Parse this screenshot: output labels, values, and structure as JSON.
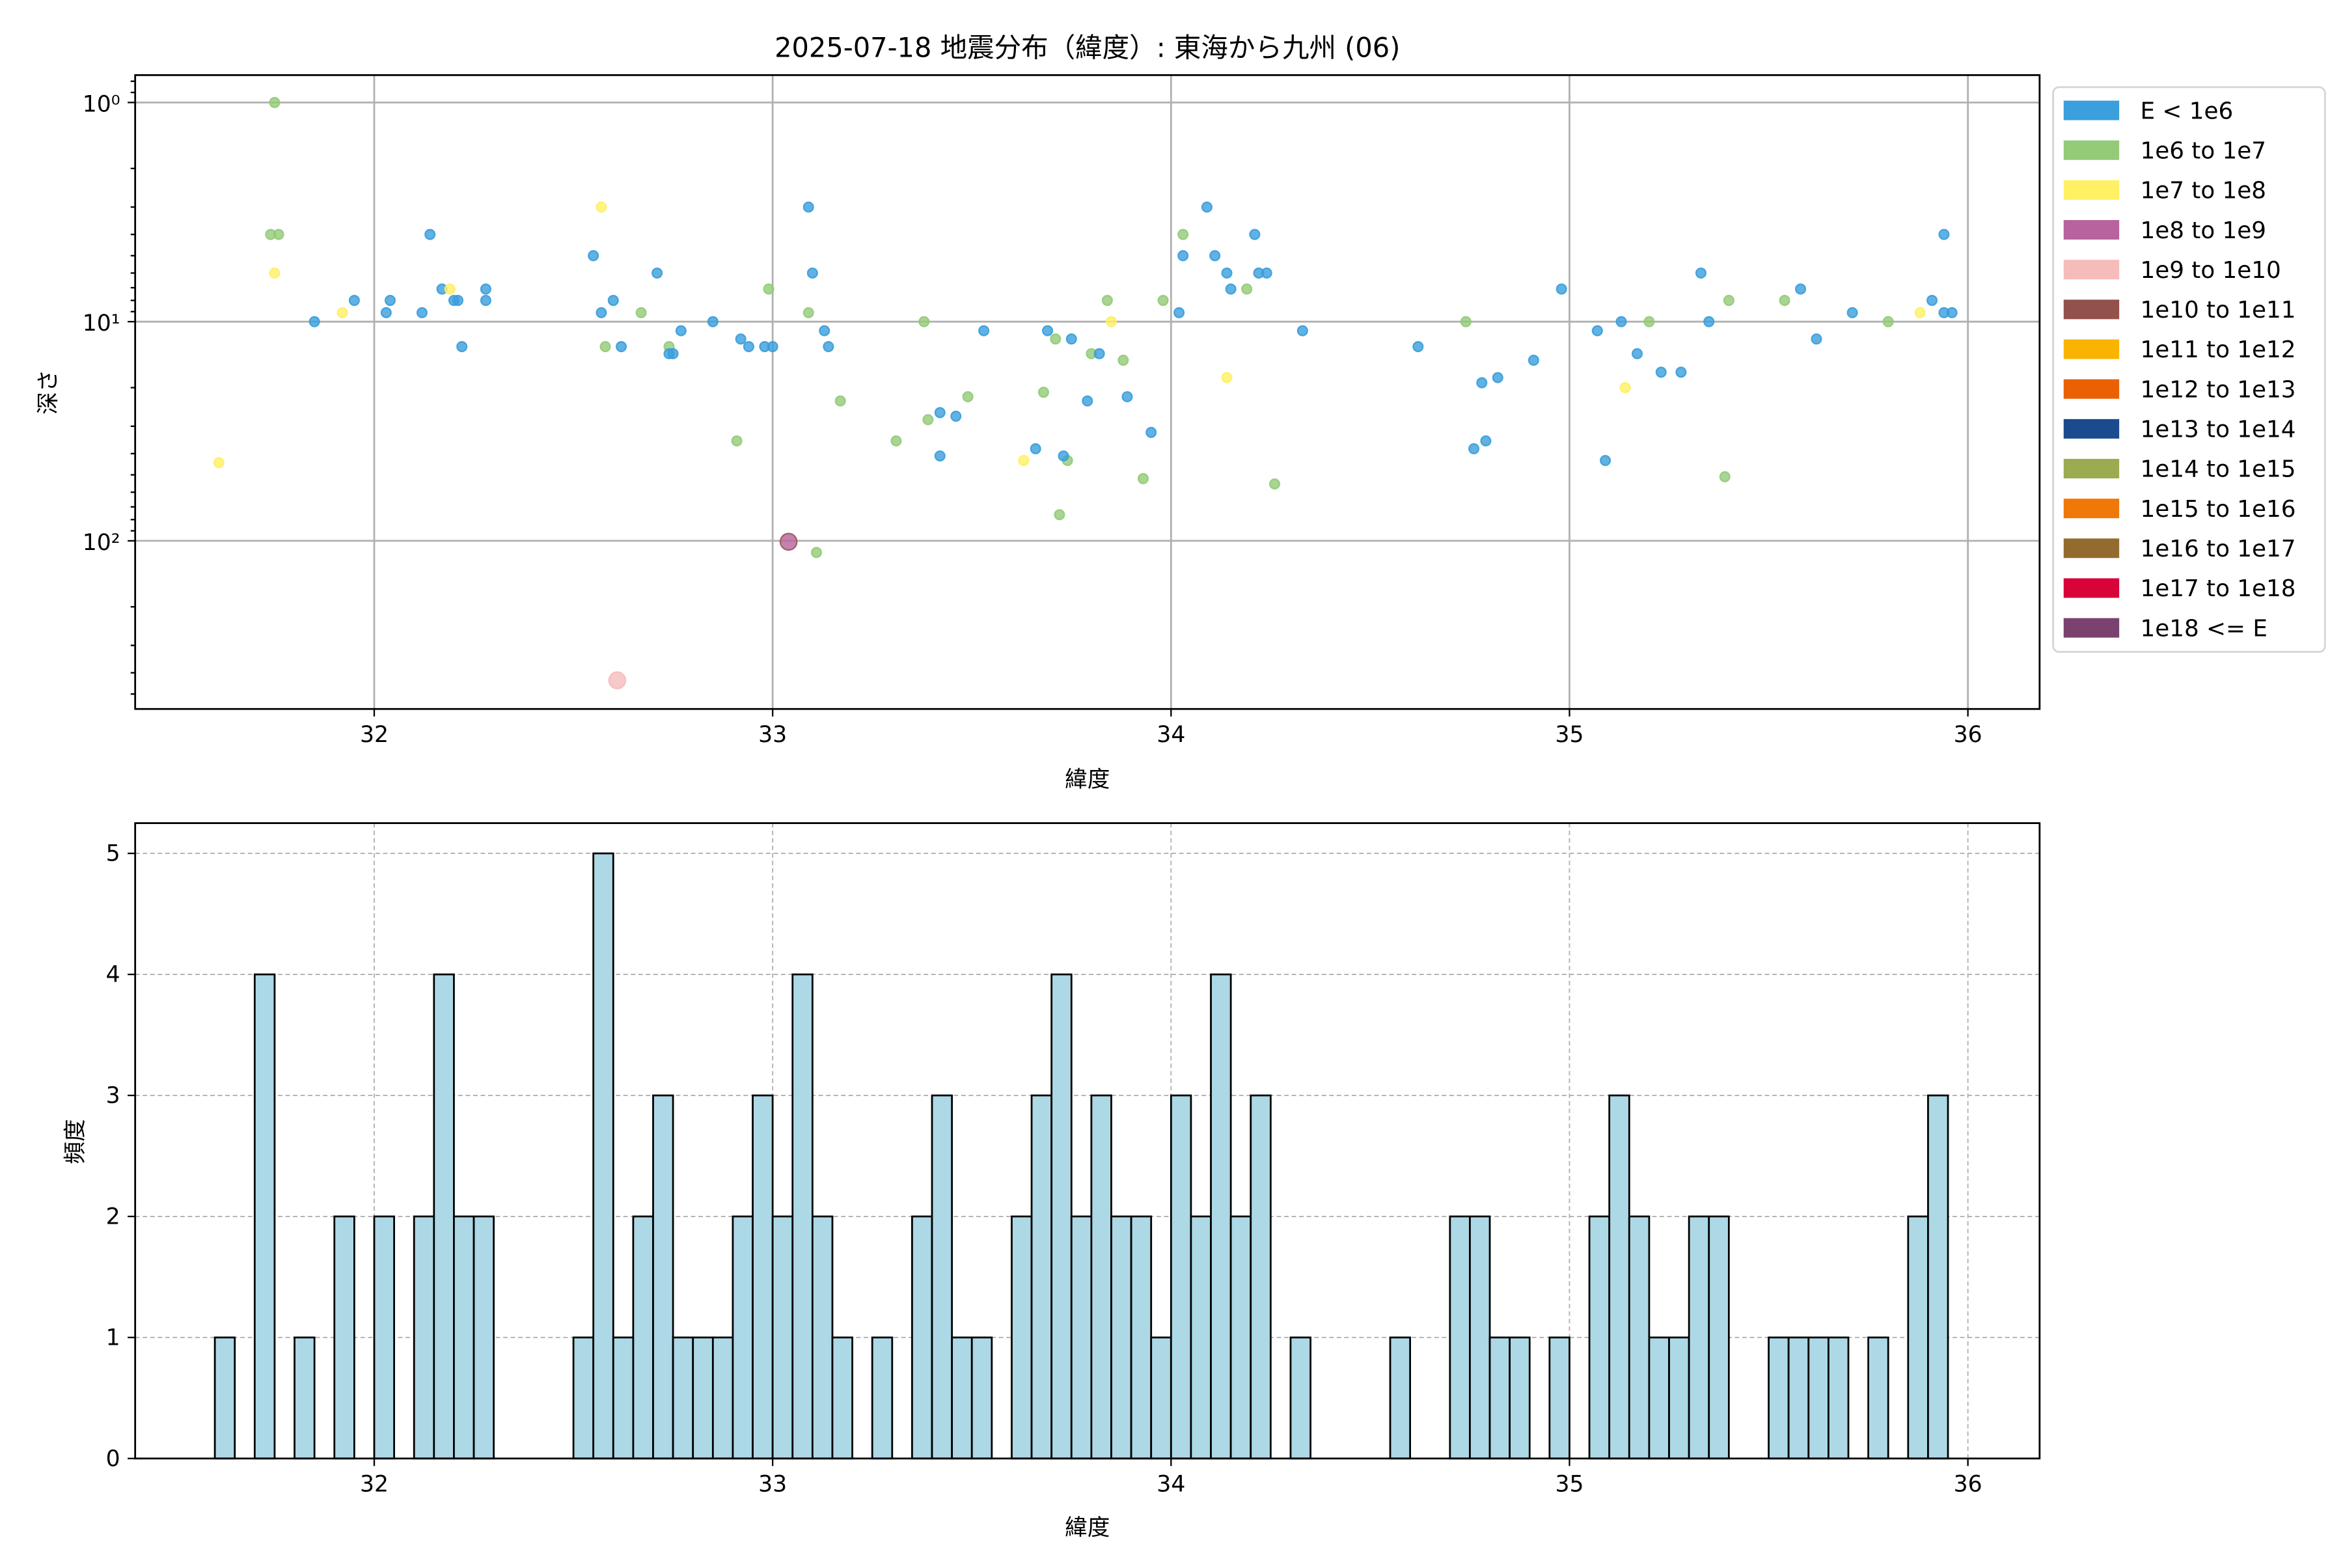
{
  "chart_data": [
    {
      "type": "scatter",
      "title": "2025-07-18 地震分布（緯度）: 東海から九州 (06)",
      "xlabel": "緯度",
      "ylabel": "深さ",
      "xlim": [
        31.4,
        36.18
      ],
      "ylim": [
        585,
        0.75
      ],
      "y_scale": "log",
      "y_inverted": true,
      "grid": true,
      "x_ticks": [
        "32",
        "33",
        "34",
        "35",
        "36"
      ],
      "y_ticks": [
        {
          "value": 1,
          "label": "10⁰"
        },
        {
          "value": 10,
          "label": "10¹"
        },
        {
          "value": 100,
          "label": "10²"
        }
      ],
      "legend_position": "outside-right",
      "legend": [
        {
          "label": "E < 1e6",
          "color": "#3a9fdc"
        },
        {
          "label": "1e6 to 1e7",
          "color": "#93cb78"
        },
        {
          "label": "1e7 to 1e8",
          "color": "#fff064"
        },
        {
          "label": "1e8 to 1e9",
          "color": "#b8629e"
        },
        {
          "label": "1e9 to 1e10",
          "color": "#f5bcba"
        },
        {
          "label": "1e10 to 1e11",
          "color": "#93514b"
        },
        {
          "label": "1e11 to 1e12",
          "color": "#f8b400"
        },
        {
          "label": "1e12 to 1e13",
          "color": "#ea6104"
        },
        {
          "label": "1e13 to 1e14",
          "color": "#1c4a8e"
        },
        {
          "label": "1e14 to 1e15",
          "color": "#9bac50"
        },
        {
          "label": "1e15 to 1e16",
          "color": "#f07808"
        },
        {
          "label": "1e16 to 1e17",
          "color": "#946b2e"
        },
        {
          "label": "1e17 to 1e18",
          "color": "#d80338"
        },
        {
          "label": "1e18 <= E",
          "color": "#7a426f"
        }
      ],
      "points": [
        [
          31.61,
          44,
          2
        ],
        [
          31.75,
          1.0,
          1
        ],
        [
          31.74,
          4.0,
          1
        ],
        [
          31.76,
          4.0,
          1
        ],
        [
          31.75,
          6.0,
          2
        ],
        [
          31.85,
          10,
          0
        ],
        [
          31.92,
          9.1,
          2
        ],
        [
          31.95,
          8.0,
          0
        ],
        [
          32.03,
          9.1,
          0
        ],
        [
          32.04,
          8.0,
          0
        ],
        [
          32.12,
          9.1,
          0
        ],
        [
          32.14,
          4.0,
          0
        ],
        [
          32.17,
          7.1,
          0
        ],
        [
          32.19,
          7.1,
          2
        ],
        [
          32.2,
          8.0,
          0
        ],
        [
          32.21,
          8.0,
          0
        ],
        [
          32.22,
          13,
          0
        ],
        [
          32.28,
          7.1,
          0
        ],
        [
          32.28,
          8.0,
          0
        ],
        [
          32.55,
          5.0,
          0
        ],
        [
          32.57,
          3.0,
          2
        ],
        [
          32.57,
          9.1,
          0
        ],
        [
          32.58,
          13,
          1
        ],
        [
          32.6,
          8.0,
          0
        ],
        [
          32.61,
          433,
          4
        ],
        [
          32.62,
          13,
          0
        ],
        [
          32.67,
          9.1,
          1
        ],
        [
          32.71,
          6.0,
          0
        ],
        [
          32.74,
          13,
          1
        ],
        [
          32.74,
          14,
          0
        ],
        [
          32.75,
          14,
          0
        ],
        [
          32.77,
          11,
          0
        ],
        [
          32.85,
          10,
          0
        ],
        [
          32.91,
          35,
          1
        ],
        [
          32.92,
          12,
          0
        ],
        [
          32.94,
          13,
          0
        ],
        [
          32.98,
          13,
          0
        ],
        [
          33.0,
          13,
          0
        ],
        [
          32.99,
          7.1,
          1
        ],
        [
          33.04,
          101,
          3
        ],
        [
          33.09,
          3.0,
          0
        ],
        [
          33.1,
          6.0,
          0
        ],
        [
          33.09,
          9.1,
          1
        ],
        [
          33.11,
          113,
          1
        ],
        [
          33.13,
          11,
          0
        ],
        [
          33.14,
          13,
          0
        ],
        [
          33.17,
          23,
          1
        ],
        [
          33.31,
          35,
          1
        ],
        [
          33.38,
          10,
          1
        ],
        [
          33.39,
          28,
          1
        ],
        [
          33.42,
          26,
          0
        ],
        [
          33.42,
          41,
          0
        ],
        [
          33.46,
          27,
          0
        ],
        [
          33.49,
          22,
          1
        ],
        [
          33.53,
          11,
          0
        ],
        [
          33.63,
          43,
          2
        ],
        [
          33.66,
          38,
          0
        ],
        [
          33.68,
          21,
          1
        ],
        [
          33.69,
          11,
          0
        ],
        [
          33.71,
          12,
          1
        ],
        [
          33.72,
          76,
          1
        ],
        [
          33.74,
          43,
          1
        ],
        [
          33.73,
          41,
          0
        ],
        [
          33.75,
          12,
          0
        ],
        [
          33.79,
          23,
          0
        ],
        [
          33.8,
          14,
          1
        ],
        [
          33.82,
          14,
          0
        ],
        [
          33.84,
          8.0,
          1
        ],
        [
          33.85,
          10,
          2
        ],
        [
          33.88,
          15,
          1
        ],
        [
          33.89,
          22,
          0
        ],
        [
          33.93,
          52,
          1
        ],
        [
          33.95,
          32,
          0
        ],
        [
          33.98,
          8.0,
          1
        ],
        [
          34.02,
          9.1,
          0
        ],
        [
          34.03,
          4.0,
          1
        ],
        [
          34.03,
          5.0,
          0
        ],
        [
          34.09,
          3.0,
          0
        ],
        [
          34.11,
          5.0,
          0
        ],
        [
          34.14,
          6.0,
          0
        ],
        [
          34.14,
          18,
          2
        ],
        [
          34.15,
          7.1,
          0
        ],
        [
          34.19,
          7.1,
          1
        ],
        [
          34.21,
          4.0,
          0
        ],
        [
          34.22,
          6.0,
          0
        ],
        [
          34.24,
          6.0,
          0
        ],
        [
          34.26,
          55,
          1
        ],
        [
          34.33,
          11,
          0
        ],
        [
          34.62,
          13,
          0
        ],
        [
          34.74,
          10,
          1
        ],
        [
          34.76,
          38,
          0
        ],
        [
          34.78,
          19,
          0
        ],
        [
          34.79,
          35,
          0
        ],
        [
          34.82,
          18,
          0
        ],
        [
          34.91,
          15,
          0
        ],
        [
          34.98,
          7.1,
          0
        ],
        [
          35.07,
          11,
          0
        ],
        [
          35.09,
          43,
          0
        ],
        [
          35.13,
          10,
          0
        ],
        [
          35.14,
          20,
          2
        ],
        [
          35.17,
          14,
          0
        ],
        [
          35.2,
          10,
          1
        ],
        [
          35.23,
          17,
          0
        ],
        [
          35.28,
          17,
          0
        ],
        [
          35.33,
          6.0,
          0
        ],
        [
          35.35,
          10,
          0
        ],
        [
          35.39,
          51,
          1
        ],
        [
          35.4,
          8.0,
          1
        ],
        [
          35.54,
          8.0,
          1
        ],
        [
          35.58,
          7.1,
          0
        ],
        [
          35.62,
          12,
          0
        ],
        [
          35.71,
          9.1,
          0
        ],
        [
          35.8,
          10,
          1
        ],
        [
          35.88,
          9.1,
          2
        ],
        [
          35.91,
          8.0,
          0
        ],
        [
          35.94,
          4.0,
          0
        ],
        [
          35.94,
          9.1,
          0
        ],
        [
          35.96,
          9.1,
          0
        ]
      ]
    },
    {
      "type": "bar",
      "subtype": "histogram",
      "xlabel": "緯度",
      "ylabel": "頻度",
      "xlim": [
        31.4,
        36.18
      ],
      "ylim": [
        0,
        5.25
      ],
      "grid": true,
      "bar_color": "#add8e6",
      "edge_color": "#000000",
      "bin_width": 0.05,
      "x_ticks": [
        "32",
        "33",
        "34",
        "35",
        "36"
      ],
      "y_ticks": [
        "0",
        "1",
        "2",
        "3",
        "4",
        "5"
      ],
      "bins": [
        [
          31.6,
          1
        ],
        [
          31.7,
          4
        ],
        [
          31.8,
          1
        ],
        [
          31.9,
          2
        ],
        [
          32.0,
          2
        ],
        [
          32.1,
          2
        ],
        [
          32.15,
          4
        ],
        [
          32.2,
          2
        ],
        [
          32.25,
          2
        ],
        [
          32.5,
          1
        ],
        [
          32.55,
          5
        ],
        [
          32.6,
          1
        ],
        [
          32.65,
          2
        ],
        [
          32.7,
          3
        ],
        [
          32.75,
          1
        ],
        [
          32.8,
          1
        ],
        [
          32.85,
          1
        ],
        [
          32.9,
          2
        ],
        [
          32.95,
          3
        ],
        [
          33.0,
          2
        ],
        [
          33.05,
          4
        ],
        [
          33.1,
          2
        ],
        [
          33.15,
          1
        ],
        [
          33.25,
          1
        ],
        [
          33.35,
          2
        ],
        [
          33.4,
          3
        ],
        [
          33.45,
          1
        ],
        [
          33.5,
          1
        ],
        [
          33.6,
          2
        ],
        [
          33.65,
          3
        ],
        [
          33.7,
          4
        ],
        [
          33.75,
          2
        ],
        [
          33.8,
          3
        ],
        [
          33.85,
          2
        ],
        [
          33.9,
          2
        ],
        [
          33.95,
          1
        ],
        [
          34.0,
          3
        ],
        [
          34.05,
          2
        ],
        [
          34.1,
          4
        ],
        [
          34.15,
          2
        ],
        [
          34.2,
          3
        ],
        [
          34.3,
          1
        ],
        [
          34.55,
          1
        ],
        [
          34.7,
          2
        ],
        [
          34.75,
          2
        ],
        [
          34.8,
          1
        ],
        [
          34.85,
          1
        ],
        [
          34.95,
          1
        ],
        [
          35.05,
          2
        ],
        [
          35.1,
          3
        ],
        [
          35.15,
          2
        ],
        [
          35.2,
          1
        ],
        [
          35.25,
          1
        ],
        [
          35.3,
          2
        ],
        [
          35.35,
          2
        ],
        [
          35.5,
          1
        ],
        [
          35.55,
          1
        ],
        [
          35.6,
          1
        ],
        [
          35.65,
          1
        ],
        [
          35.75,
          1
        ],
        [
          35.85,
          2
        ],
        [
          35.9,
          3
        ]
      ]
    }
  ]
}
